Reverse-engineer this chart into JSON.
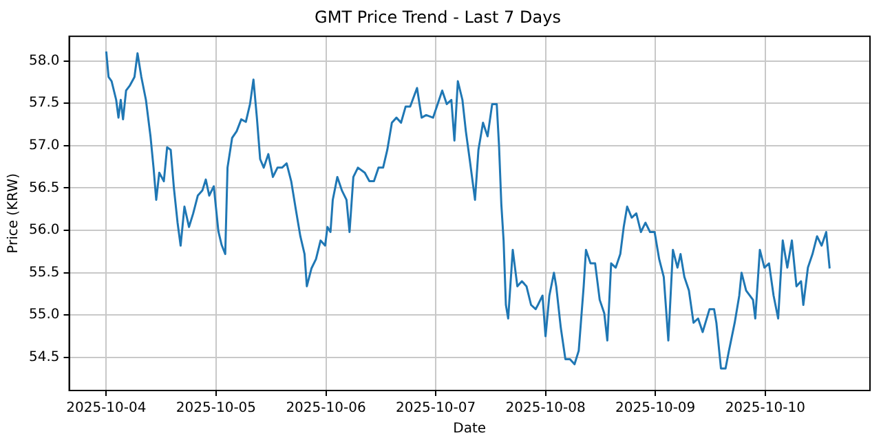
{
  "chart_data": {
    "type": "line",
    "title": "GMT Price Trend - Last 7 Days",
    "xlabel": "Date",
    "ylabel": "Price (KRW)",
    "grid": true,
    "marker": "none",
    "line_style": "solid",
    "xlim": [
      "2025-10-03T15:54",
      "2025-10-10T22:54"
    ],
    "xticks": [
      "2025-10-04",
      "2025-10-05",
      "2025-10-06",
      "2025-10-07",
      "2025-10-08",
      "2025-10-09",
      "2025-10-10"
    ],
    "ylim": [
      54.11,
      58.29
    ],
    "yticks": [
      {
        "value": 54.5,
        "label": "54.5"
      },
      {
        "value": 55,
        "label": "55.0"
      },
      {
        "value": 55.5,
        "label": "55.5"
      },
      {
        "value": 56,
        "label": "56.0"
      },
      {
        "value": 56.5,
        "label": "56.5"
      },
      {
        "value": 57,
        "label": "57.0"
      },
      {
        "value": 57.5,
        "label": "57.5"
      },
      {
        "value": 58,
        "label": "58.0"
      }
    ],
    "series": [
      {
        "color": "#1f77b4",
        "x": [
          "2025-10-04T00:00",
          "2025-10-04T00:30",
          "2025-10-04T01:10",
          "2025-10-04T02:10",
          "2025-10-04T02:40",
          "2025-10-04T03:10",
          "2025-10-04T03:40",
          "2025-10-04T04:20",
          "2025-10-04T05:10",
          "2025-10-04T06:10",
          "2025-10-04T06:50",
          "2025-10-04T07:40",
          "2025-10-04T08:40",
          "2025-10-04T09:40",
          "2025-10-04T10:20",
          "2025-10-04T10:55",
          "2025-10-04T11:35",
          "2025-10-04T12:35",
          "2025-10-04T13:18",
          "2025-10-04T14:05",
          "2025-10-04T14:48",
          "2025-10-04T15:35",
          "2025-10-04T16:15",
          "2025-10-04T17:05",
          "2025-10-04T18:05",
          "2025-10-04T19:00",
          "2025-10-04T20:00",
          "2025-10-04T21:00",
          "2025-10-04T21:45",
          "2025-10-04T22:30",
          "2025-10-04T23:30",
          "2025-10-05T00:30",
          "2025-10-05T01:12",
          "2025-10-05T02:00",
          "2025-10-05T02:30",
          "2025-10-05T03:30",
          "2025-10-05T04:30",
          "2025-10-05T05:30",
          "2025-10-05T06:30",
          "2025-10-05T07:25",
          "2025-10-05T08:10",
          "2025-10-05T08:55",
          "2025-10-05T09:38",
          "2025-10-05T10:25",
          "2025-10-05T11:25",
          "2025-10-05T12:25",
          "2025-10-05T13:25",
          "2025-10-05T14:25",
          "2025-10-05T15:25",
          "2025-10-05T16:25",
          "2025-10-05T17:25",
          "2025-10-05T18:25",
          "2025-10-05T19:20",
          "2025-10-05T19:50",
          "2025-10-05T20:50",
          "2025-10-05T21:50",
          "2025-10-05T22:50",
          "2025-10-05T23:50",
          "2025-10-06T00:20",
          "2025-10-06T01:00",
          "2025-10-06T01:30",
          "2025-10-06T02:30",
          "2025-10-06T03:30",
          "2025-10-06T04:30",
          "2025-10-06T05:10",
          "2025-10-06T06:00",
          "2025-10-06T07:00",
          "2025-10-06T08:30",
          "2025-10-06T09:30",
          "2025-10-06T10:30",
          "2025-10-06T11:30",
          "2025-10-06T12:30",
          "2025-10-06T13:25",
          "2025-10-06T14:25",
          "2025-10-06T15:25",
          "2025-10-06T16:25",
          "2025-10-06T17:25",
          "2025-10-06T18:25",
          "2025-10-06T19:55",
          "2025-10-06T20:55",
          "2025-10-06T21:55",
          "2025-10-06T23:25",
          "2025-10-07T00:25",
          "2025-10-07T01:25",
          "2025-10-07T02:25",
          "2025-10-07T03:25",
          "2025-10-07T04:05",
          "2025-10-07T04:50",
          "2025-10-07T05:50",
          "2025-10-07T06:35",
          "2025-10-07T07:25",
          "2025-10-07T08:35",
          "2025-10-07T09:20",
          "2025-10-07T10:20",
          "2025-10-07T11:20",
          "2025-10-07T12:20",
          "2025-10-07T13:20",
          "2025-10-07T13:50",
          "2025-10-07T14:20",
          "2025-10-07T14:50",
          "2025-10-07T15:20",
          "2025-10-07T15:50",
          "2025-10-07T16:50",
          "2025-10-07T17:50",
          "2025-10-07T18:50",
          "2025-10-07T19:50",
          "2025-10-07T20:50",
          "2025-10-07T21:50",
          "2025-10-07T22:20",
          "2025-10-07T23:20",
          "2025-10-08T00:00",
          "2025-10-08T00:50",
          "2025-10-08T01:50",
          "2025-10-08T02:20",
          "2025-10-08T03:20",
          "2025-10-08T04:20",
          "2025-10-08T05:20",
          "2025-10-08T06:20",
          "2025-10-08T07:15",
          "2025-10-08T08:20",
          "2025-10-08T08:50",
          "2025-10-08T09:50",
          "2025-10-08T10:50",
          "2025-10-08T11:50",
          "2025-10-08T12:50",
          "2025-10-08T13:30",
          "2025-10-08T14:20",
          "2025-10-08T15:20",
          "2025-10-08T16:20",
          "2025-10-08T17:05",
          "2025-10-08T17:50",
          "2025-10-08T18:50",
          "2025-10-08T19:50",
          "2025-10-08T20:50",
          "2025-10-08T21:50",
          "2025-10-08T22:50",
          "2025-10-08T23:50",
          "2025-10-09T00:50",
          "2025-10-09T01:50",
          "2025-10-09T02:50",
          "2025-10-09T03:50",
          "2025-10-09T04:50",
          "2025-10-09T05:30",
          "2025-10-09T06:20",
          "2025-10-09T07:20",
          "2025-10-09T08:20",
          "2025-10-09T09:20",
          "2025-10-09T10:20",
          "2025-10-09T11:50",
          "2025-10-09T12:50",
          "2025-10-09T13:20",
          "2025-10-09T14:20",
          "2025-10-09T15:20",
          "2025-10-09T16:05",
          "2025-10-09T17:20",
          "2025-10-09T18:20",
          "2025-10-09T18:50",
          "2025-10-09T19:50",
          "2025-10-09T21:20",
          "2025-10-09T21:50",
          "2025-10-09T22:50",
          "2025-10-09T23:50",
          "2025-10-10T00:50",
          "2025-10-10T01:50",
          "2025-10-10T02:50",
          "2025-10-10T03:50",
          "2025-10-10T04:50",
          "2025-10-10T05:50",
          "2025-10-10T06:50",
          "2025-10-10T07:50",
          "2025-10-10T08:20",
          "2025-10-10T09:20",
          "2025-10-10T10:20",
          "2025-10-10T11:20",
          "2025-10-10T12:20",
          "2025-10-10T13:20",
          "2025-10-10T14:05"
        ],
        "values": [
          58.11,
          57.81,
          57.76,
          57.54,
          57.33,
          57.54,
          57.31,
          57.65,
          57.71,
          57.81,
          58.09,
          57.81,
          57.54,
          57.11,
          56.74,
          56.36,
          56.68,
          56.58,
          56.98,
          56.95,
          56.49,
          56.09,
          55.82,
          56.28,
          56.04,
          56.2,
          56.41,
          56.47,
          56.6,
          56.41,
          56.52,
          55.99,
          55.83,
          55.72,
          56.74,
          57.09,
          57.17,
          57.31,
          57.28,
          57.49,
          57.78,
          57.33,
          56.84,
          56.74,
          56.9,
          56.63,
          56.74,
          56.74,
          56.79,
          56.58,
          56.25,
          55.93,
          55.72,
          55.34,
          55.55,
          55.66,
          55.88,
          55.82,
          56.04,
          55.98,
          56.36,
          56.63,
          56.47,
          56.36,
          55.98,
          56.63,
          56.74,
          56.68,
          56.58,
          56.58,
          56.74,
          56.74,
          56.95,
          57.27,
          57.33,
          57.27,
          57.46,
          57.46,
          57.68,
          57.33,
          57.36,
          57.33,
          57.49,
          57.65,
          57.49,
          57.54,
          57.06,
          57.76,
          57.54,
          57.17,
          56.84,
          56.36,
          56.95,
          57.27,
          57.11,
          57.49,
          57.49,
          57.0,
          56.31,
          55.88,
          55.12,
          54.96,
          55.77,
          55.34,
          55.4,
          55.34,
          55.12,
          55.07,
          55.12,
          55.23,
          54.75,
          55.23,
          55.5,
          55.34,
          54.85,
          54.48,
          54.48,
          54.42,
          54.58,
          55.34,
          55.77,
          55.61,
          55.61,
          55.18,
          55.02,
          54.7,
          55.61,
          55.56,
          55.72,
          56.04,
          56.28,
          56.15,
          56.2,
          55.98,
          56.09,
          55.98,
          55.98,
          55.66,
          55.45,
          54.7,
          55.77,
          55.56,
          55.72,
          55.45,
          55.29,
          54.91,
          54.96,
          54.8,
          55.07,
          55.07,
          54.91,
          54.37,
          54.37,
          54.58,
          54.91,
          55.23,
          55.5,
          55.29,
          55.18,
          54.96,
          55.77,
          55.56,
          55.61,
          55.23,
          54.96,
          55.88,
          55.56,
          55.88,
          55.34,
          55.4,
          55.12,
          55.56,
          55.72,
          55.93,
          55.82,
          55.98,
          55.55
        ]
      }
    ]
  }
}
